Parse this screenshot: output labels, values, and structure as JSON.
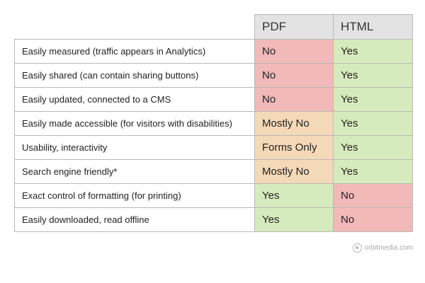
{
  "columns": {
    "pdf": "PDF",
    "html": "HTML"
  },
  "rows": [
    {
      "feature": "Easily measured (traffic appears in Analytics)",
      "pdf": "No",
      "html": "Yes",
      "pdf_status": "red",
      "html_status": "green"
    },
    {
      "feature": "Easily shared (can contain sharing buttons)",
      "pdf": "No",
      "html": "Yes",
      "pdf_status": "red",
      "html_status": "green"
    },
    {
      "feature": "Easily updated, connected to a CMS",
      "pdf": "No",
      "html": "Yes",
      "pdf_status": "red",
      "html_status": "green"
    },
    {
      "feature": "Easily made accessible (for visitors with disabilities)",
      "pdf": "Mostly No",
      "html": "Yes",
      "pdf_status": "orange",
      "html_status": "green"
    },
    {
      "feature": "Usability, interactivity",
      "pdf": "Forms Only",
      "html": "Yes",
      "pdf_status": "orange",
      "html_status": "green"
    },
    {
      "feature": "Search engine friendly*",
      "pdf": "Mostly No",
      "html": "Yes",
      "pdf_status": "orange",
      "html_status": "green"
    },
    {
      "feature": "Exact control of formatting (for printing)",
      "pdf": "Yes",
      "html": "No",
      "pdf_status": "green",
      "html_status": "red"
    },
    {
      "feature": "Easily downloaded, read offline",
      "pdf": "Yes",
      "html": "No",
      "pdf_status": "green",
      "html_status": "red"
    }
  ],
  "colors": {
    "red": "#f2b9b9",
    "orange": "#f4d9b8",
    "green": "#d6ebbd",
    "header": "#e3e3e3"
  },
  "watermark": {
    "text": "orbitmedia.com",
    "icon": "orbit-logo-icon"
  }
}
